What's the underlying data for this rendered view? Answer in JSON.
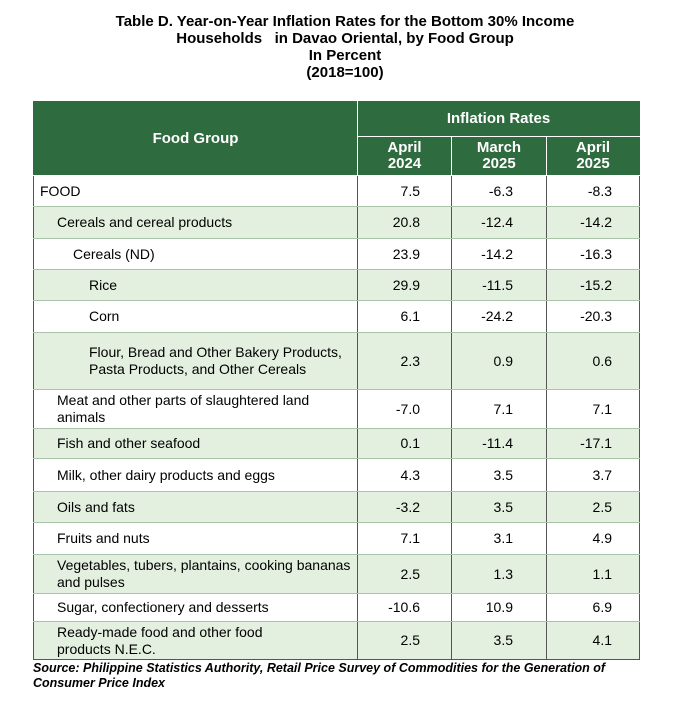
{
  "title": {
    "line1": "Table D. Year-on-Year Inflation Rates for the Bottom 30% Income",
    "line2": "Households   in Davao Oriental, by Food Group",
    "line3": "In Percent",
    "line4": "(2018=100)"
  },
  "table": {
    "header_food_group": "Food Group",
    "header_rates": "Inflation Rates",
    "col1_line1": "April",
    "col1_line2": "2024",
    "col2_line1": "March",
    "col2_line2": "2025",
    "col3_line1": "April",
    "col3_line2": "2025",
    "rows": [
      {
        "label": "FOOD",
        "a": "7.5",
        "b": "-6.3",
        "c": "-8.3"
      },
      {
        "label": "Cereals and cereal products",
        "a": "20.8",
        "b": "-12.4",
        "c": "-14.2"
      },
      {
        "label": "Cereals (ND)",
        "a": "23.9",
        "b": "-14.2",
        "c": "-16.3"
      },
      {
        "label": "Rice",
        "a": "29.9",
        "b": "-11.5",
        "c": "-15.2"
      },
      {
        "label": "Corn",
        "a": "6.1",
        "b": "-24.2",
        "c": "-20.3"
      },
      {
        "label": "Flour, Bread and Other Bakery Products, Pasta Products, and Other Cereals",
        "a": "2.3",
        "b": "0.9",
        "c": "0.6"
      },
      {
        "label": "Meat and other parts of slaughtered land animals",
        "a": "-7.0",
        "b": "7.1",
        "c": "7.1"
      },
      {
        "label": "Fish and other seafood",
        "a": "0.1",
        "b": "-11.4",
        "c": "-17.1"
      },
      {
        "label": "Milk, other dairy products and eggs",
        "a": "4.3",
        "b": "3.5",
        "c": "3.7"
      },
      {
        "label": "Oils and fats",
        "a": "-3.2",
        "b": "3.5",
        "c": "2.5"
      },
      {
        "label": "Fruits and nuts",
        "a": "7.1",
        "b": "3.1",
        "c": "4.9"
      },
      {
        "label": "Vegetables, tubers, plantains, cooking bananas and pulses",
        "a": "2.5",
        "b": "1.3",
        "c": "1.1"
      },
      {
        "label": "Sugar, confectionery and desserts",
        "a": "-10.6",
        "b": "10.9",
        "c": "6.9"
      },
      {
        "label": "Ready-made food and other food products N.E.C.",
        "a": "2.5",
        "b": "3.5",
        "c": "4.1"
      }
    ]
  },
  "source": "Source: Philippine Statistics Authority, Retail Price Survey of Commodities for the Generation of Consumer Price Index"
}
